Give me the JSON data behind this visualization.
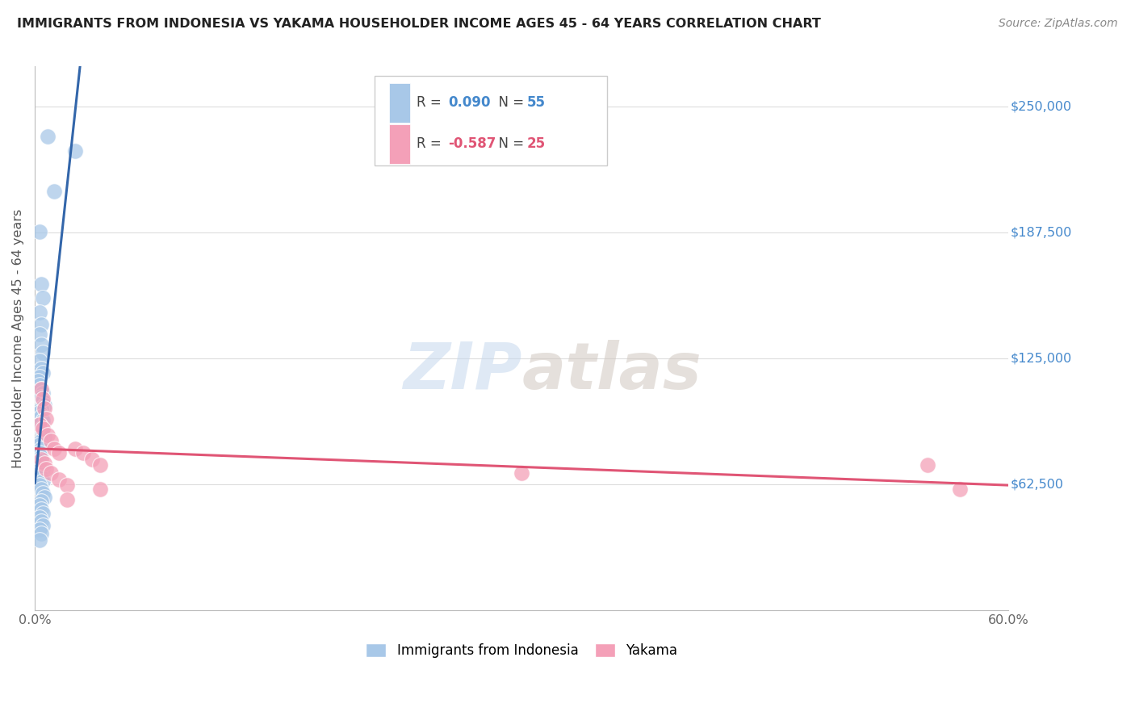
{
  "title": "IMMIGRANTS FROM INDONESIA VS YAKAMA HOUSEHOLDER INCOME AGES 45 - 64 YEARS CORRELATION CHART",
  "source": "Source: ZipAtlas.com",
  "ylabel": "Householder Income Ages 45 - 64 years",
  "yticks": [
    0,
    62500,
    125000,
    187500,
    250000
  ],
  "ytick_labels": [
    "",
    "$62,500",
    "$125,000",
    "$187,500",
    "$250,000"
  ],
  "xlim": [
    0.0,
    0.6
  ],
  "ylim": [
    0,
    270000
  ],
  "legend1_label": "Immigrants from Indonesia",
  "legend2_label": "Yakama",
  "r1": 0.09,
  "n1": 55,
  "r2": -0.587,
  "n2": 25,
  "blue_color": "#A8C8E8",
  "pink_color": "#F4A0B8",
  "blue_line_color": "#3366AA",
  "pink_line_color": "#E05575",
  "blue_scatter_x": [
    0.008,
    0.025,
    0.012,
    0.003,
    0.004,
    0.005,
    0.003,
    0.004,
    0.003,
    0.004,
    0.005,
    0.003,
    0.004,
    0.005,
    0.003,
    0.002,
    0.003,
    0.004,
    0.005,
    0.004,
    0.005,
    0.006,
    0.004,
    0.003,
    0.004,
    0.005,
    0.003,
    0.004,
    0.005,
    0.006,
    0.004,
    0.003,
    0.004,
    0.003,
    0.004,
    0.003,
    0.004,
    0.005,
    0.003,
    0.004,
    0.005,
    0.003,
    0.004,
    0.005,
    0.006,
    0.004,
    0.003,
    0.004,
    0.005,
    0.003,
    0.004,
    0.005,
    0.003,
    0.004,
    0.003
  ],
  "blue_scatter_y": [
    235000,
    228000,
    208000,
    188000,
    162000,
    155000,
    148000,
    142000,
    137000,
    132000,
    128000,
    124000,
    120000,
    118000,
    116000,
    114000,
    112000,
    110000,
    108000,
    106000,
    104000,
    102000,
    100000,
    98000,
    96000,
    94000,
    92000,
    90000,
    88000,
    86000,
    84000,
    82000,
    80000,
    78000,
    76000,
    74000,
    72000,
    70000,
    68000,
    66000,
    64000,
    62000,
    60000,
    58000,
    56000,
    54000,
    52000,
    50000,
    48000,
    46000,
    44000,
    42000,
    40000,
    38000,
    35000
  ],
  "pink_scatter_x": [
    0.004,
    0.005,
    0.006,
    0.007,
    0.003,
    0.005,
    0.008,
    0.01,
    0.012,
    0.015,
    0.004,
    0.006,
    0.007,
    0.01,
    0.015,
    0.02,
    0.025,
    0.03,
    0.035,
    0.04,
    0.3,
    0.04,
    0.02,
    0.55,
    0.57
  ],
  "pink_scatter_y": [
    110000,
    105000,
    100000,
    95000,
    92000,
    90000,
    87000,
    84000,
    80000,
    78000,
    75000,
    73000,
    70000,
    68000,
    65000,
    62000,
    80000,
    78000,
    75000,
    72000,
    68000,
    60000,
    55000,
    72000,
    60000
  ],
  "blue_line_x": [
    0.0,
    0.057,
    0.6
  ],
  "blue_line_solid_end": 0.057,
  "watermark": "ZIPatlas",
  "watermark_zip": "ZIP",
  "watermark_atlas": "atlas"
}
